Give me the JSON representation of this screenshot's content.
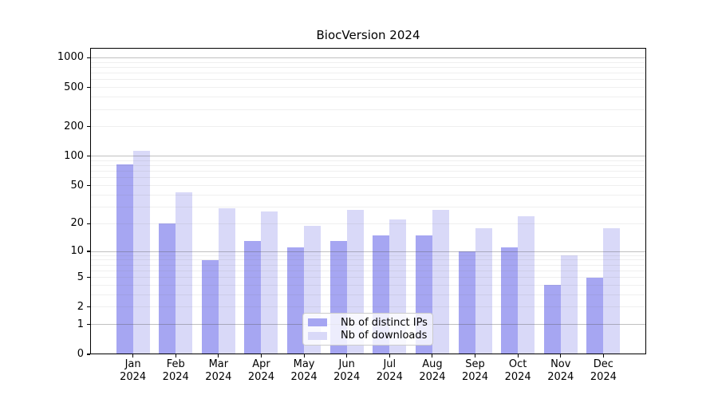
{
  "title": "BiocVersion 2024",
  "legend": {
    "items": [
      {
        "label": "Nb of distinct IPs",
        "color": "#a6a6f2"
      },
      {
        "label": "Nb of downloads",
        "color": "#d9d9f8"
      }
    ]
  },
  "chart_data": {
    "type": "bar",
    "title": "BiocVersion 2024",
    "categories": [
      "Jan 2024",
      "Feb 2024",
      "Mar 2024",
      "Apr 2024",
      "May 2024",
      "Jun 2024",
      "Jul 2024",
      "Aug 2024",
      "Sep 2024",
      "Oct 2024",
      "Nov 2024",
      "Dec 2024"
    ],
    "series": [
      {
        "name": "Nb of distinct IPs",
        "color": "#a6a6f2",
        "values": [
          82,
          20,
          8,
          13,
          11,
          13,
          15,
          15,
          10,
          11,
          4,
          5
        ]
      },
      {
        "name": "Nb of downloads",
        "color": "#d9d9f8",
        "values": [
          113,
          43,
          29,
          27,
          19,
          28,
          22,
          28,
          18,
          24,
          9,
          18
        ]
      }
    ],
    "xlabel": "",
    "ylabel": "",
    "yscale": "log1p",
    "ylim": [
      0,
      1261
    ],
    "yticks": [
      0,
      1,
      2,
      5,
      10,
      20,
      50,
      100,
      200,
      500,
      1000
    ],
    "grid_minor_values": [
      2,
      3,
      4,
      5,
      6,
      7,
      8,
      9,
      20,
      30,
      40,
      50,
      60,
      70,
      80,
      90,
      200,
      300,
      400,
      500,
      600,
      700,
      800,
      900
    ],
    "grid_major_values": [
      1,
      10,
      100,
      1000
    ],
    "grid": "on",
    "legend_position": "lower-center"
  }
}
